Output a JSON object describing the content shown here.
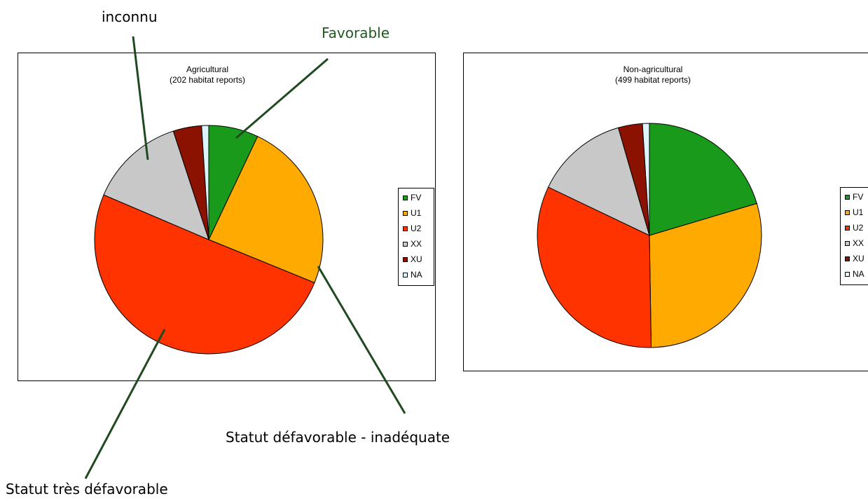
{
  "annotations": {
    "unknown": "inconnu",
    "favorable": "Favorable",
    "inadequate": "Statut défavorable - inadéquate",
    "bad": "Statut très défavorable",
    "favorable_color": "#1f5b1f",
    "arrow_color": "#1f4a1f"
  },
  "colors": {
    "FV": "#1a9a1a",
    "U1": "#ffaa00",
    "U2": "#ff3300",
    "XX": "#c8c8c8",
    "XU": "#8b1200",
    "NA": "#dcf5fa"
  },
  "chart_data": [
    {
      "type": "pie",
      "title": "Agricultural",
      "subtitle": "(202 habitat reports)",
      "labels": [
        "FV",
        "U1",
        "U2",
        "XX",
        "XU",
        "NA"
      ],
      "values": [
        7,
        24,
        50,
        13.5,
        4,
        1
      ],
      "legend": "right"
    },
    {
      "type": "pie",
      "title": "Non-agricultural",
      "subtitle": "(499 habitat reports)",
      "labels": [
        "FV",
        "U1",
        "U2",
        "XX",
        "XU",
        "NA"
      ],
      "values": [
        20.5,
        29.5,
        32.5,
        13.5,
        3.5,
        1
      ],
      "legend": "right"
    }
  ]
}
